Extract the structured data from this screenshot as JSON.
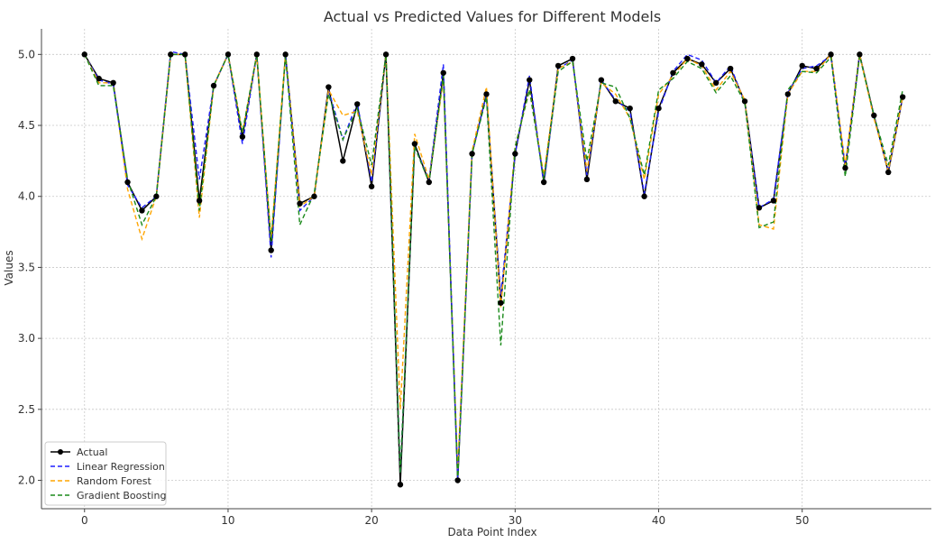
{
  "chart_data": {
    "type": "line",
    "title": "Actual vs Predicted Values for Different Models",
    "xlabel": "Data Point Index",
    "ylabel": "Values",
    "xlim": [
      -3,
      59
    ],
    "ylim": [
      1.8,
      5.18
    ],
    "xticks": [
      0,
      10,
      20,
      30,
      40,
      50
    ],
    "yticks": [
      2.0,
      2.5,
      3.0,
      3.5,
      4.0,
      4.5,
      5.0
    ],
    "grid": true,
    "legend_position": "lower-left",
    "x": [
      0,
      1,
      2,
      3,
      4,
      5,
      6,
      7,
      8,
      9,
      10,
      11,
      12,
      13,
      14,
      15,
      16,
      17,
      18,
      19,
      20,
      21,
      22,
      23,
      24,
      25,
      26,
      27,
      28,
      29,
      30,
      31,
      32,
      33,
      34,
      35,
      36,
      37,
      38,
      39,
      40,
      41,
      42,
      43,
      44,
      45,
      46,
      47,
      48,
      49,
      50,
      51,
      52,
      53,
      54,
      55,
      56,
      57
    ],
    "series": [
      {
        "name": "Actual",
        "color": "#000000",
        "style": "solid-markers",
        "values": [
          5.0,
          4.83,
          4.8,
          4.1,
          3.9,
          4.0,
          5.0,
          5.0,
          3.97,
          4.78,
          5.0,
          4.42,
          5.0,
          3.62,
          5.0,
          3.95,
          4.0,
          4.77,
          4.25,
          4.65,
          4.07,
          5.0,
          1.97,
          4.37,
          4.1,
          4.87,
          2.0,
          4.3,
          4.72,
          3.25,
          4.3,
          4.82,
          4.1,
          4.92,
          4.97,
          4.12,
          4.82,
          4.67,
          4.62,
          4.0,
          4.62,
          4.87,
          4.97,
          4.93,
          4.8,
          4.9,
          4.67,
          3.92,
          3.97,
          4.72,
          4.92,
          4.9,
          5.0,
          4.2,
          5.0,
          4.57,
          4.17,
          4.7
        ]
      },
      {
        "name": "Linear Regression",
        "color": "#1f1fff",
        "style": "dashed",
        "values": [
          5.0,
          4.82,
          4.79,
          4.08,
          3.92,
          4.0,
          5.02,
          5.0,
          4.12,
          4.78,
          5.0,
          4.37,
          5.0,
          3.57,
          5.0,
          3.9,
          4.0,
          4.75,
          4.4,
          4.66,
          4.1,
          5.0,
          2.05,
          4.35,
          4.12,
          4.93,
          2.02,
          4.3,
          4.72,
          3.3,
          4.3,
          4.85,
          4.08,
          4.9,
          4.96,
          4.15,
          4.82,
          4.68,
          4.6,
          4.02,
          4.6,
          4.88,
          5.0,
          4.96,
          4.8,
          4.92,
          4.66,
          3.92,
          3.98,
          4.73,
          4.9,
          4.92,
          4.99,
          4.2,
          5.0,
          4.56,
          4.18,
          4.7
        ]
      },
      {
        "name": "Random Forest",
        "color": "#ffa500",
        "style": "dashed",
        "values": [
          5.0,
          4.8,
          4.8,
          4.05,
          3.7,
          4.0,
          5.0,
          5.0,
          3.85,
          4.78,
          5.0,
          4.45,
          4.99,
          3.7,
          5.0,
          3.93,
          4.0,
          4.75,
          4.57,
          4.6,
          4.15,
          5.0,
          2.5,
          4.44,
          4.12,
          4.82,
          2.08,
          4.32,
          4.77,
          3.22,
          4.35,
          4.75,
          4.15,
          4.9,
          4.95,
          4.18,
          4.8,
          4.72,
          4.55,
          4.12,
          4.72,
          4.85,
          4.97,
          4.92,
          4.75,
          4.88,
          4.68,
          3.8,
          3.77,
          4.72,
          4.88,
          4.88,
          5.0,
          4.22,
          5.0,
          4.55,
          4.18,
          4.7
        ]
      },
      {
        "name": "Gradient Boosting",
        "color": "#1a8a1a",
        "style": "dashed",
        "values": [
          5.0,
          4.78,
          4.78,
          4.12,
          3.8,
          4.0,
          5.0,
          5.0,
          3.9,
          4.78,
          5.0,
          4.45,
          5.0,
          3.68,
          4.99,
          3.8,
          4.02,
          4.72,
          4.4,
          4.62,
          4.22,
          5.0,
          2.05,
          4.35,
          4.1,
          4.85,
          2.0,
          4.3,
          4.7,
          2.95,
          4.35,
          4.75,
          4.12,
          4.88,
          4.95,
          4.25,
          4.8,
          4.77,
          4.55,
          4.15,
          4.75,
          4.83,
          4.95,
          4.9,
          4.73,
          4.85,
          4.66,
          3.78,
          3.82,
          4.75,
          4.88,
          4.87,
          4.98,
          4.14,
          4.99,
          4.57,
          4.22,
          4.75
        ]
      }
    ]
  }
}
